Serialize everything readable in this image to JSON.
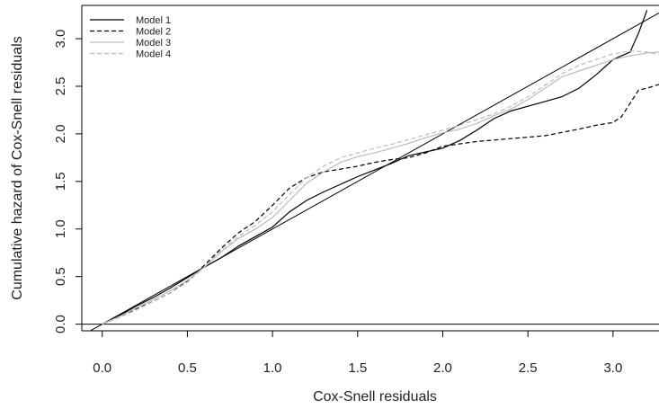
{
  "chart_data": {
    "type": "line",
    "xlabel": "Cox-Snell residuals",
    "ylabel": "Cumulative hazard of Cox-Snell residuals",
    "xlim": [
      -0.12,
      3.27
    ],
    "ylim": [
      -0.07,
      3.35
    ],
    "x_ticks": [
      {
        "value": 0.0,
        "label": "0.0"
      },
      {
        "value": 0.5,
        "label": "0.5"
      },
      {
        "value": 1.0,
        "label": "1.0"
      },
      {
        "value": 1.5,
        "label": "1.5"
      },
      {
        "value": 2.0,
        "label": "2.0"
      },
      {
        "value": 2.5,
        "label": "2.5"
      },
      {
        "value": 3.0,
        "label": "3.0"
      }
    ],
    "y_ticks": [
      {
        "value": 0.0,
        "label": "0.0"
      },
      {
        "value": 0.5,
        "label": "0.5"
      },
      {
        "value": 1.0,
        "label": "1.0"
      },
      {
        "value": 1.5,
        "label": "1.5"
      },
      {
        "value": 2.0,
        "label": "2.0"
      },
      {
        "value": 2.5,
        "label": "2.5"
      },
      {
        "value": 3.0,
        "label": "3.0"
      }
    ],
    "grid": false,
    "legend_position": "top-left",
    "reference_lines": [
      {
        "kind": "identity",
        "slope": 1,
        "intercept": 0
      },
      {
        "kind": "horizontal",
        "y": 0
      }
    ],
    "series": [
      {
        "name": "Model 1",
        "color": "#000000",
        "dash": "solid",
        "x": [
          0,
          0.1,
          0.2,
          0.3,
          0.4,
          0.5,
          0.6,
          0.7,
          0.8,
          0.9,
          1.0,
          1.1,
          1.2,
          1.3,
          1.4,
          1.5,
          1.6,
          1.7,
          1.8,
          1.9,
          2.0,
          2.1,
          2.2,
          2.3,
          2.4,
          2.5,
          2.6,
          2.7,
          2.8,
          2.9,
          3.0,
          3.1,
          3.15,
          3.2
        ],
        "y": [
          0,
          0.09,
          0.19,
          0.28,
          0.38,
          0.49,
          0.6,
          0.7,
          0.82,
          0.92,
          1.02,
          1.18,
          1.3,
          1.39,
          1.47,
          1.55,
          1.62,
          1.69,
          1.77,
          1.81,
          1.85,
          1.93,
          2.04,
          2.16,
          2.24,
          2.29,
          2.34,
          2.39,
          2.48,
          2.62,
          2.78,
          2.86,
          3.06,
          3.3
        ]
      },
      {
        "name": "Model 2",
        "color": "#000000",
        "dash": "dashed",
        "x": [
          0,
          0.1,
          0.2,
          0.3,
          0.4,
          0.5,
          0.6,
          0.7,
          0.8,
          0.9,
          1.0,
          1.1,
          1.2,
          1.3,
          1.4,
          1.5,
          1.6,
          1.7,
          1.8,
          1.9,
          2.0,
          2.2,
          2.4,
          2.6,
          2.8,
          2.9,
          3.0,
          3.05,
          3.1,
          3.15,
          3.2,
          3.27
        ],
        "y": [
          0,
          0.08,
          0.16,
          0.24,
          0.33,
          0.45,
          0.62,
          0.8,
          0.96,
          1.08,
          1.25,
          1.43,
          1.54,
          1.6,
          1.63,
          1.66,
          1.7,
          1.73,
          1.75,
          1.8,
          1.87,
          1.92,
          1.95,
          1.98,
          2.05,
          2.09,
          2.12,
          2.18,
          2.32,
          2.46,
          2.48,
          2.52
        ]
      },
      {
        "name": "Model 3",
        "color": "#bbbbbb",
        "dash": "solid",
        "x": [
          0,
          0.1,
          0.2,
          0.3,
          0.4,
          0.5,
          0.6,
          0.7,
          0.8,
          0.9,
          1.0,
          1.1,
          1.2,
          1.3,
          1.4,
          1.5,
          1.6,
          1.7,
          1.8,
          1.9,
          2.0,
          2.1,
          2.2,
          2.3,
          2.4,
          2.5,
          2.6,
          2.7,
          2.8,
          2.9,
          3.0,
          3.1,
          3.2,
          3.27
        ],
        "y": [
          0,
          0.08,
          0.17,
          0.26,
          0.35,
          0.46,
          0.6,
          0.76,
          0.9,
          1.0,
          1.12,
          1.3,
          1.48,
          1.6,
          1.7,
          1.76,
          1.8,
          1.85,
          1.9,
          1.96,
          2.01,
          2.05,
          2.11,
          2.19,
          2.26,
          2.36,
          2.48,
          2.6,
          2.66,
          2.72,
          2.78,
          2.82,
          2.85,
          2.86
        ]
      },
      {
        "name": "Model 4",
        "color": "#bbbbbb",
        "dash": "dashed",
        "x": [
          0,
          0.1,
          0.2,
          0.3,
          0.4,
          0.5,
          0.6,
          0.7,
          0.8,
          0.9,
          1.0,
          1.1,
          1.2,
          1.3,
          1.4,
          1.5,
          1.6,
          1.7,
          1.8,
          1.9,
          2.0,
          2.1,
          2.2,
          2.3,
          2.4,
          2.5,
          2.6,
          2.7,
          2.8,
          2.9,
          3.0,
          3.1,
          3.2,
          3.27
        ],
        "y": [
          0,
          0.07,
          0.15,
          0.24,
          0.33,
          0.44,
          0.6,
          0.78,
          0.92,
          1.04,
          1.18,
          1.36,
          1.54,
          1.66,
          1.75,
          1.8,
          1.85,
          1.89,
          1.94,
          1.99,
          2.04,
          2.09,
          2.15,
          2.21,
          2.29,
          2.39,
          2.51,
          2.63,
          2.72,
          2.78,
          2.84,
          2.87,
          2.86,
          2.83
        ]
      }
    ]
  }
}
